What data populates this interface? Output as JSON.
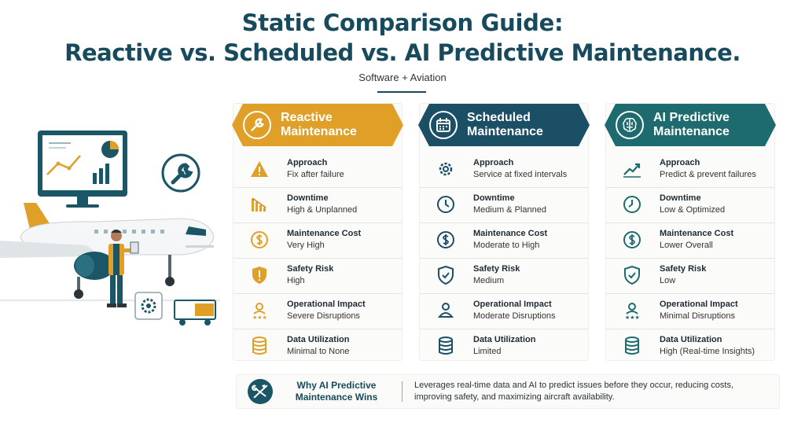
{
  "header": {
    "title_line1": "Static Comparison Guide:",
    "title_line2": "Reactive vs. Scheduled vs. AI Predictive Maintenance.",
    "subtitle": "Software + Aviation"
  },
  "colors": {
    "title": "#174a5c",
    "reactive": "#e0a028",
    "scheduled": "#1b4f66",
    "predictive": "#1d6b6e"
  },
  "columns": [
    {
      "title": "Reactive Maintenance",
      "icon": "wrench-icon",
      "rows": [
        {
          "label": "Approach",
          "value": "Fix after failure",
          "icon": "warning-icon"
        },
        {
          "label": "Downtime",
          "value": "High & Unplanned",
          "icon": "bar-chart-down-icon"
        },
        {
          "label": "Maintenance Cost",
          "value": "Very High",
          "icon": "dollar-icon"
        },
        {
          "label": "Safety Risk",
          "value": "High",
          "icon": "shield-alert-icon"
        },
        {
          "label": "Operational Impact",
          "value": "Severe Disruptions",
          "icon": "person-stars-icon"
        },
        {
          "label": "Data Utilization",
          "value": "Minimal to None",
          "icon": "database-icon"
        }
      ]
    },
    {
      "title": "Scheduled Maintenance",
      "icon": "calendar-icon",
      "rows": [
        {
          "label": "Approach",
          "value": "Service at fixed intervals",
          "icon": "gear-icon"
        },
        {
          "label": "Downtime",
          "value": "Medium & Planned",
          "icon": "clock-icon"
        },
        {
          "label": "Maintenance Cost",
          "value": "Moderate to High",
          "icon": "dollar-icon"
        },
        {
          "label": "Safety Risk",
          "value": "Medium",
          "icon": "shield-check-icon"
        },
        {
          "label": "Operational Impact",
          "value": "Moderate Disruptions",
          "icon": "person-stars-icon"
        },
        {
          "label": "Data Utilization",
          "value": "Limited",
          "icon": "database-icon"
        }
      ]
    },
    {
      "title": "AI Predictive Maintenance",
      "icon": "brain-icon",
      "rows": [
        {
          "label": "Approach",
          "value": "Predict & prevent failures",
          "icon": "trend-up-icon"
        },
        {
          "label": "Downtime",
          "value": "Low & Optimized",
          "icon": "clock-icon"
        },
        {
          "label": "Maintenance Cost",
          "value": "Lower Overall",
          "icon": "dollar-icon"
        },
        {
          "label": "Safety Risk",
          "value": "Low",
          "icon": "shield-check-icon"
        },
        {
          "label": "Operational Impact",
          "value": "Minimal Disruptions",
          "icon": "person-stars-icon"
        },
        {
          "label": "Data Utilization",
          "value": "High (Real-time Insights)",
          "icon": "database-icon"
        }
      ]
    }
  ],
  "banner": {
    "title": "Why AI Predictive Maintenance Wins",
    "text": "Leverages real-time data and AI to predict issues before they occur, reducing costs, improving safety, and maximizing aircraft availability.",
    "icon": "airplane-tools-icon"
  }
}
